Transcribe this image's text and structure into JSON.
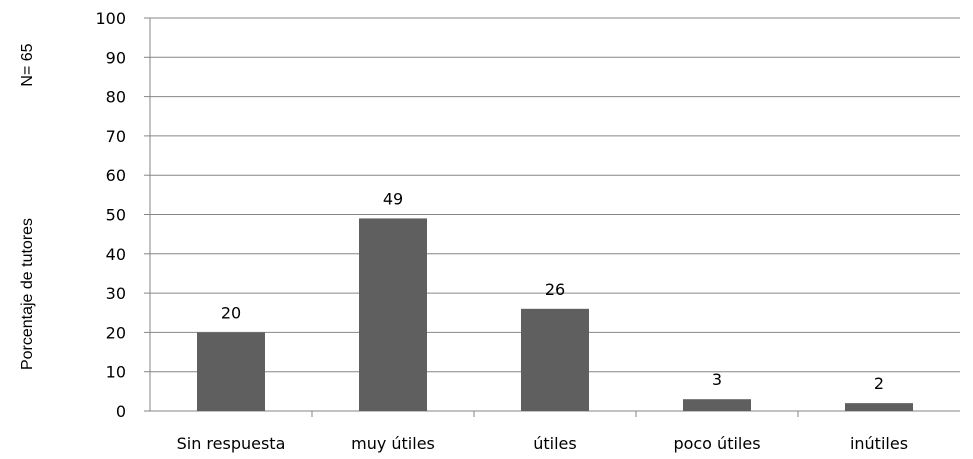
{
  "annotation": "N= 65",
  "chart_data": {
    "type": "bar",
    "categories": [
      "Sin respuesta",
      "muy útiles",
      "útiles",
      "poco útiles",
      "inútiles"
    ],
    "values": [
      20,
      49,
      26,
      3,
      2
    ],
    "data_labels": [
      "20",
      "49",
      "26",
      "3",
      "2"
    ],
    "title": "",
    "xlabel": "",
    "ylabel": "Porcentaje de tutores",
    "ylim": [
      0,
      100
    ],
    "yticks": [
      "0",
      "10",
      "20",
      "30",
      "40",
      "50",
      "60",
      "70",
      "80",
      "90",
      "100"
    ],
    "grid": true,
    "bar_color": "#5f5f5f",
    "grid_color": "#868686"
  }
}
